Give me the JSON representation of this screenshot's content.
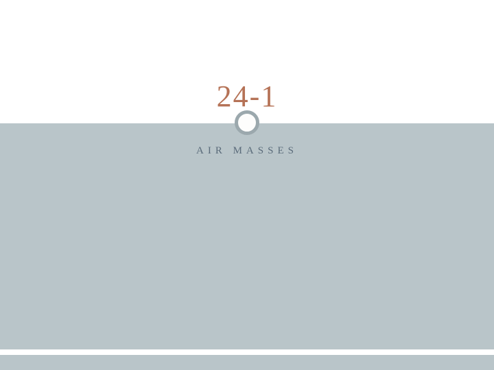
{
  "slide": {
    "title": "24-1",
    "subtitle": "AIR MASSES",
    "colors": {
      "title_color": "#b57256",
      "subtitle_color": "#5a6b7a",
      "background_top": "#ffffff",
      "background_middle": "#b9c5c9",
      "circle_border": "#9ba8ad",
      "circle_fill": "#fdfdfc"
    },
    "typography": {
      "title_fontsize": 44,
      "title_letterspacing": 2,
      "subtitle_fontsize": 15,
      "subtitle_letterspacing": 6,
      "font_family": "Georgia, serif"
    },
    "layout": {
      "top_section_height": 180,
      "middle_section_height": 338,
      "bottom_bar_height": 22,
      "circle_diameter": 36,
      "circle_border_width": 5
    }
  }
}
